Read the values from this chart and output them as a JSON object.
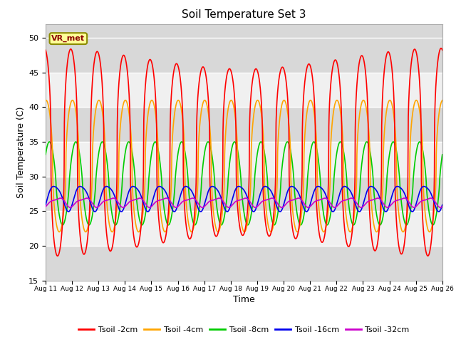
{
  "title": "Soil Temperature Set 3",
  "xlabel": "Time",
  "ylabel": "Soil Temperature (C)",
  "ylim": [
    15,
    52
  ],
  "series": {
    "Tsoil -2cm": {
      "color": "#ff0000",
      "lw": 1.2
    },
    "Tsoil -4cm": {
      "color": "#ffa500",
      "lw": 1.2
    },
    "Tsoil -8cm": {
      "color": "#00cc00",
      "lw": 1.2
    },
    "Tsoil -16cm": {
      "color": "#0000ee",
      "lw": 1.2
    },
    "Tsoil -32cm": {
      "color": "#cc00cc",
      "lw": 1.2
    }
  },
  "annotation_text": "VR_met",
  "plot_bg_color": "#e0e0e0",
  "band_color_light": "#f0f0f0",
  "band_color_dark": "#d8d8d8"
}
